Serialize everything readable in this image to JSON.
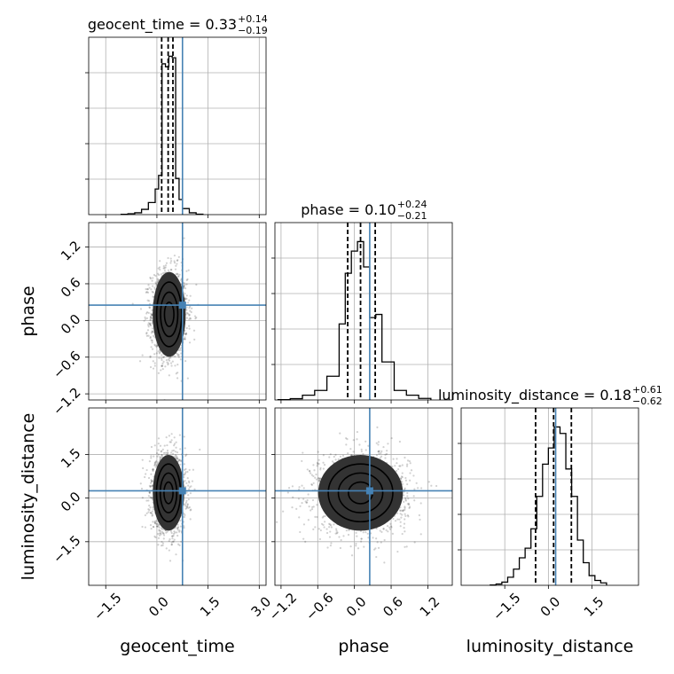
{
  "chart_data": {
    "type": "corner",
    "parameters": [
      {
        "key": "geocent_time",
        "axis_label": "geocent_time",
        "title": {
          "name": "geocent_time",
          "value": "0.33",
          "plus": "+0.14",
          "minus": "−0.19"
        },
        "range": [
          -2.0,
          3.2
        ],
        "ticks": [
          -1.5,
          0.0,
          1.5,
          3.0
        ],
        "tick_labels": [
          "−1.5",
          "0.0",
          "1.5",
          "3.0"
        ],
        "truth": 0.75,
        "quantiles": [
          0.14,
          0.33,
          0.47
        ],
        "hist": {
          "edges": [
            -1.05,
            -0.85,
            -0.65,
            -0.45,
            -0.25,
            -0.05,
            0.05,
            0.15,
            0.25,
            0.35,
            0.45,
            0.55,
            0.65,
            0.75,
            0.95,
            1.15,
            1.35
          ],
          "counts": [
            0.2,
            0.6,
            1.2,
            3.5,
            8,
            17,
            26,
            100,
            98,
            105,
            104,
            24,
            10,
            4,
            1.2,
            0.3
          ]
        }
      },
      {
        "key": "phase",
        "axis_label": "phase",
        "title": {
          "name": "phase",
          "value": "0.10",
          "plus": "+0.24",
          "minus": "−0.21"
        },
        "range": [
          -1.3,
          1.6
        ],
        "ticks": [
          -1.2,
          -0.6,
          0.0,
          0.6,
          1.2
        ],
        "tick_labels": [
          "−1.2",
          "−0.6",
          "0.0",
          "0.6",
          "1.2"
        ],
        "truth": 0.25,
        "quantiles": [
          -0.11,
          0.1,
          0.34
        ],
        "hist": {
          "edges": [
            -1.25,
            -1.05,
            -0.85,
            -0.65,
            -0.45,
            -0.25,
            -0.15,
            -0.05,
            0.05,
            0.15,
            0.25,
            0.35,
            0.45,
            0.65,
            0.85,
            1.05,
            1.25
          ],
          "counts": [
            0.2,
            0.8,
            3,
            6,
            15,
            48,
            80,
            94,
            100,
            84,
            52,
            54,
            24,
            6,
            3,
            1
          ]
        }
      },
      {
        "key": "luminosity_distance",
        "axis_label": "luminosity_distance",
        "title": {
          "name": "luminosity_distance",
          "value": "0.18",
          "plus": "+0.61",
          "minus": "−0.62"
        },
        "range": [
          -3.0,
          3.1
        ],
        "ticks": [
          -1.5,
          0.0,
          1.5
        ],
        "tick_labels": [
          "−1.5",
          "0.0",
          "1.5"
        ],
        "truth": 0.25,
        "quantiles": [
          -0.44,
          0.18,
          0.79
        ],
        "hist": {
          "edges": [
            -2.0,
            -1.8,
            -1.6,
            -1.4,
            -1.2,
            -1.0,
            -0.8,
            -0.6,
            -0.4,
            -0.2,
            0.0,
            0.2,
            0.4,
            0.6,
            0.8,
            1.0,
            1.2,
            1.4,
            1.6,
            1.8,
            2.0
          ],
          "counts": [
            0.2,
            0.8,
            2,
            5,
            10,
            17,
            23,
            35,
            55,
            75,
            85,
            98,
            94,
            72,
            55,
            28,
            14,
            6,
            3,
            1.5
          ]
        }
      }
    ],
    "cells": [
      {
        "row": 1,
        "col": 0,
        "mean": [
          0.36,
          0.1
        ],
        "sd": [
          0.23,
          0.33
        ],
        "levels": [
          0.6,
          1.1,
          1.6,
          2.1
        ]
      },
      {
        "row": 2,
        "col": 0,
        "mean": [
          0.34,
          0.18
        ],
        "sd": [
          0.22,
          0.62
        ],
        "levels": [
          0.6,
          1.1,
          1.6,
          2.1
        ]
      },
      {
        "row": 2,
        "col": 1,
        "mean": [
          0.1,
          0.18
        ],
        "sd": [
          0.33,
          0.62
        ],
        "levels": [
          0.6,
          1.1,
          1.6,
          2.1
        ]
      }
    ],
    "truth_color": "#4682b4",
    "grid": true
  }
}
